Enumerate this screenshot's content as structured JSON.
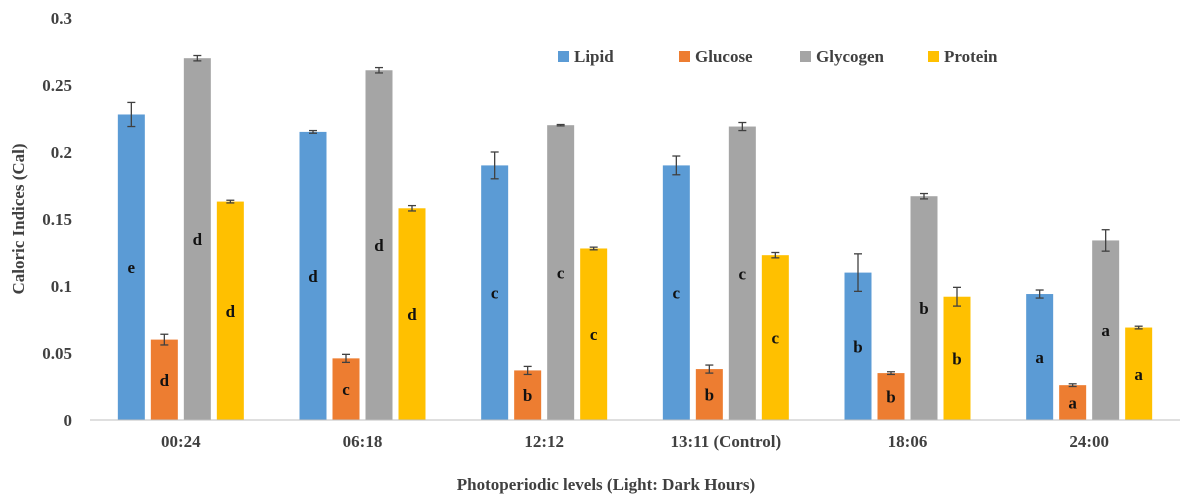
{
  "chart_data": {
    "type": "bar",
    "title": "",
    "xlabel": "Photoperiodic levels (Light: Dark Hours)",
    "ylabel": "Caloric Indices (Cal)",
    "ylim": [
      0,
      0.3
    ],
    "yticks": [
      0,
      0.05,
      0.1,
      0.15,
      0.2,
      0.25,
      0.3
    ],
    "ytick_labels": [
      "0",
      "0.05",
      "0.1",
      "0.15",
      "0.2",
      "0.25",
      "0.3"
    ],
    "grid": false,
    "legend_position": "top-right",
    "categories": [
      "00:24",
      "06:18",
      "12:12",
      "13:11 (Control)",
      "18:06",
      "24:00"
    ],
    "series": [
      {
        "name": "Lipid",
        "color": "#5B9BD5",
        "values": [
          0.228,
          0.215,
          0.19,
          0.19,
          0.11,
          0.094
        ],
        "errors": [
          0.009,
          0.001,
          0.01,
          0.007,
          0.014,
          0.003
        ],
        "labels": [
          "e",
          "d",
          "c",
          "c",
          "b",
          "a"
        ]
      },
      {
        "name": "Glucose",
        "color": "#ED7D31",
        "values": [
          0.06,
          0.046,
          0.037,
          0.038,
          0.035,
          0.026
        ],
        "errors": [
          0.004,
          0.003,
          0.003,
          0.003,
          0.001,
          0.001
        ],
        "labels": [
          "d",
          "c",
          "b",
          "b",
          "b",
          "a"
        ]
      },
      {
        "name": "Glycogen",
        "color": "#A5A5A5",
        "values": [
          0.27,
          0.261,
          0.22,
          0.219,
          0.167,
          0.134
        ],
        "errors": [
          0.002,
          0.002,
          0.0005,
          0.003,
          0.002,
          0.008
        ],
        "labels": [
          "d",
          "d",
          "c",
          "c",
          "b",
          "a"
        ]
      },
      {
        "name": "Protein",
        "color": "#FFC000",
        "values": [
          0.163,
          0.158,
          0.128,
          0.123,
          0.092,
          0.069
        ],
        "errors": [
          0.001,
          0.002,
          0.001,
          0.002,
          0.007,
          0.001
        ],
        "labels": [
          "d",
          "d",
          "c",
          "c",
          "b",
          "a"
        ]
      }
    ]
  }
}
